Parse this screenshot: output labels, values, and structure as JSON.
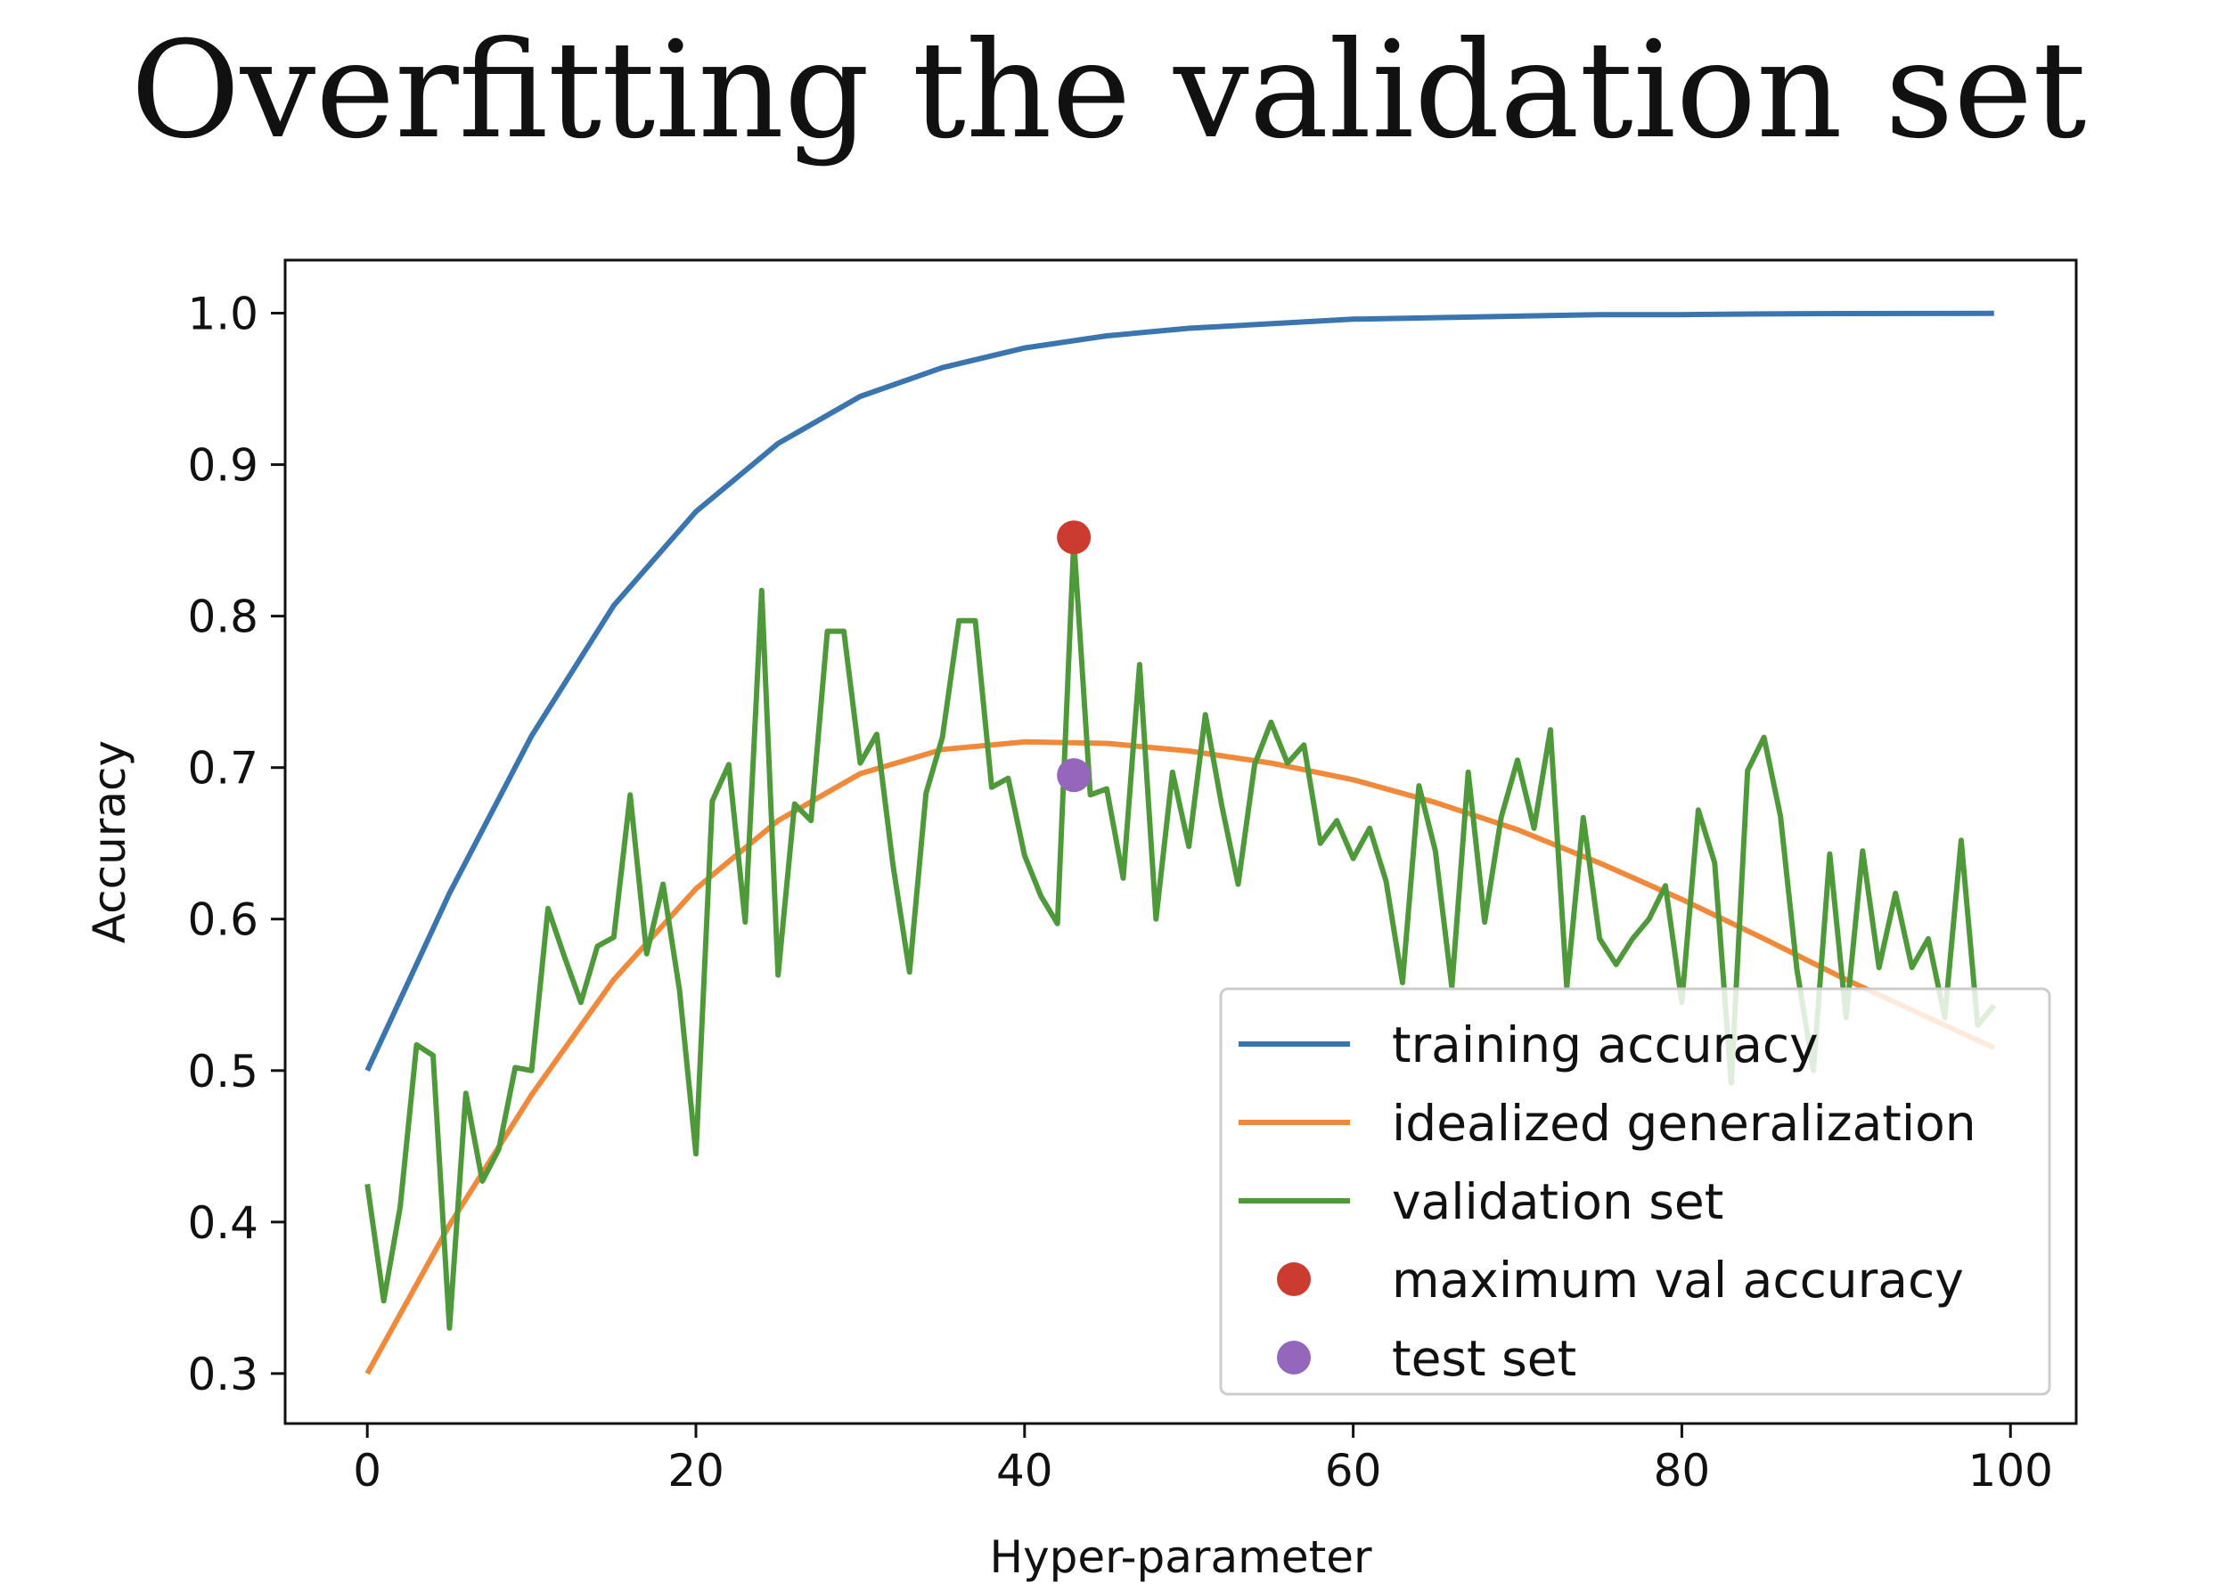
{
  "slide": {
    "title": "Overfitting the validation set"
  },
  "chart_data": {
    "type": "line",
    "title": "",
    "xlabel": "Hyper-parameter",
    "ylabel": "Accuracy",
    "xlim": [
      -5,
      104
    ],
    "ylim": [
      0.267,
      1.035
    ],
    "xticks": [
      0,
      20,
      40,
      60,
      80,
      100
    ],
    "yticks": [
      0.3,
      0.4,
      0.5,
      0.6,
      0.7,
      0.8,
      0.9,
      1.0
    ],
    "xtick_labels": [
      "0",
      "20",
      "40",
      "60",
      "80",
      "100"
    ],
    "ytick_labels": [
      "0.3",
      "0.4",
      "0.5",
      "0.6",
      "0.7",
      "0.8",
      "0.9",
      "1.0"
    ],
    "grid": false,
    "legend_position": "lower-right",
    "colors": {
      "training": "#3a75b0",
      "idealized": "#f08a3a",
      "validation": "#4e9a3a",
      "max_point": "#cc3b30",
      "test_point": "#9467bd"
    },
    "series": [
      {
        "name": "training accuracy",
        "kind": "line",
        "x": [
          0,
          5,
          10,
          15,
          20,
          25,
          30,
          35,
          40,
          45,
          50,
          55,
          60,
          65,
          70,
          75,
          80,
          85,
          90,
          95,
          99
        ],
        "y": [
          0.5,
          0.617,
          0.721,
          0.807,
          0.869,
          0.914,
          0.945,
          0.964,
          0.977,
          0.985,
          0.99,
          0.993,
          0.996,
          0.997,
          0.998,
          0.999,
          0.999,
          0.9995,
          0.9997,
          0.9998,
          0.9999
        ]
      },
      {
        "name": "idealized generalization",
        "kind": "line",
        "x": [
          0,
          5,
          10,
          15,
          20,
          25,
          30,
          35,
          40,
          45,
          50,
          55,
          60,
          65,
          70,
          75,
          80,
          85,
          90,
          95,
          99
        ],
        "y": [
          0.3,
          0.398,
          0.484,
          0.56,
          0.62,
          0.665,
          0.696,
          0.712,
          0.717,
          0.716,
          0.711,
          0.703,
          0.692,
          0.677,
          0.659,
          0.637,
          0.613,
          0.587,
          0.56,
          0.535,
          0.515
        ]
      },
      {
        "name": "validation set",
        "kind": "line",
        "x": [
          0,
          1,
          2,
          3,
          4,
          5,
          6,
          7,
          8,
          9,
          10,
          11,
          12,
          13,
          14,
          15,
          16,
          17,
          18,
          19,
          20,
          21,
          22,
          23,
          24,
          25,
          26,
          27,
          28,
          29,
          30,
          31,
          32,
          33,
          34,
          35,
          36,
          37,
          38,
          39,
          40,
          41,
          42,
          43,
          44,
          45,
          46,
          47,
          48,
          49,
          50,
          51,
          52,
          53,
          54,
          55,
          56,
          57,
          58,
          59,
          60,
          61,
          62,
          63,
          64,
          65,
          66,
          67,
          68,
          69,
          70,
          71,
          72,
          73,
          74,
          75,
          76,
          77,
          78,
          79,
          80,
          81,
          82,
          83,
          84,
          85,
          86,
          87,
          88,
          89,
          90,
          91,
          92,
          93,
          94,
          95,
          96,
          97,
          98,
          99
        ],
        "y": [
          0.425,
          0.348,
          0.41,
          0.517,
          0.51,
          0.33,
          0.485,
          0.427,
          0.448,
          0.502,
          0.5,
          0.607,
          0.575,
          0.545,
          0.582,
          0.588,
          0.682,
          0.577,
          0.623,
          0.553,
          0.445,
          0.678,
          0.702,
          0.598,
          0.817,
          0.563,
          0.676,
          0.665,
          0.79,
          0.79,
          0.703,
          0.722,
          0.635,
          0.565,
          0.683,
          0.72,
          0.797,
          0.797,
          0.687,
          0.693,
          0.642,
          0.615,
          0.597,
          0.85,
          0.682,
          0.686,
          0.627,
          0.768,
          0.6,
          0.697,
          0.648,
          0.735,
          0.675,
          0.623,
          0.702,
          0.73,
          0.703,
          0.715,
          0.65,
          0.665,
          0.64,
          0.66,
          0.625,
          0.558,
          0.688,
          0.645,
          0.555,
          0.697,
          0.598,
          0.667,
          0.705,
          0.66,
          0.725,
          0.555,
          0.667,
          0.587,
          0.57,
          0.587,
          0.6,
          0.622,
          0.545,
          0.672,
          0.637,
          0.492,
          0.698,
          0.72,
          0.668,
          0.567,
          0.5,
          0.643,
          0.535,
          0.645,
          0.568,
          0.617,
          0.568,
          0.587,
          0.535,
          0.652,
          0.53,
          0.543
        ]
      },
      {
        "name": "maximum val accuracy",
        "kind": "point",
        "x": [
          43
        ],
        "y": [
          0.852
        ]
      },
      {
        "name": "test set",
        "kind": "point",
        "x": [
          43
        ],
        "y": [
          0.695
        ]
      }
    ]
  }
}
